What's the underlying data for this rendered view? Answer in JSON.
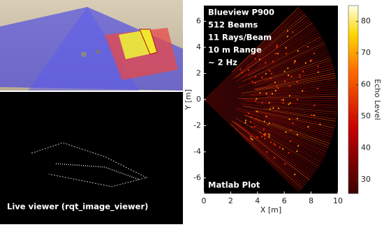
{
  "left_panels": {
    "bottom_caption": "Live viewer (rqt_image_viewer)"
  },
  "plot": {
    "annotations": [
      "Blueview P900",
      "512 Beams",
      "11 Rays/Beam",
      "10 m Range",
      "~ 2 Hz"
    ],
    "caption": "Matlab Plot",
    "x_label": "X [m]",
    "y_label": "Y [m]",
    "colorbar_label": "Echo Level",
    "xlim": [
      0,
      10
    ],
    "ylim": [
      -7.2,
      7.2
    ],
    "clim": [
      25.6,
      85
    ],
    "xticks": [
      0,
      2,
      4,
      6,
      8,
      10
    ],
    "yticks": [
      -6,
      -4,
      -2,
      0,
      2,
      4,
      6
    ],
    "colorbar_ticks": [
      30,
      40,
      50,
      60,
      70,
      80
    ]
  }
}
